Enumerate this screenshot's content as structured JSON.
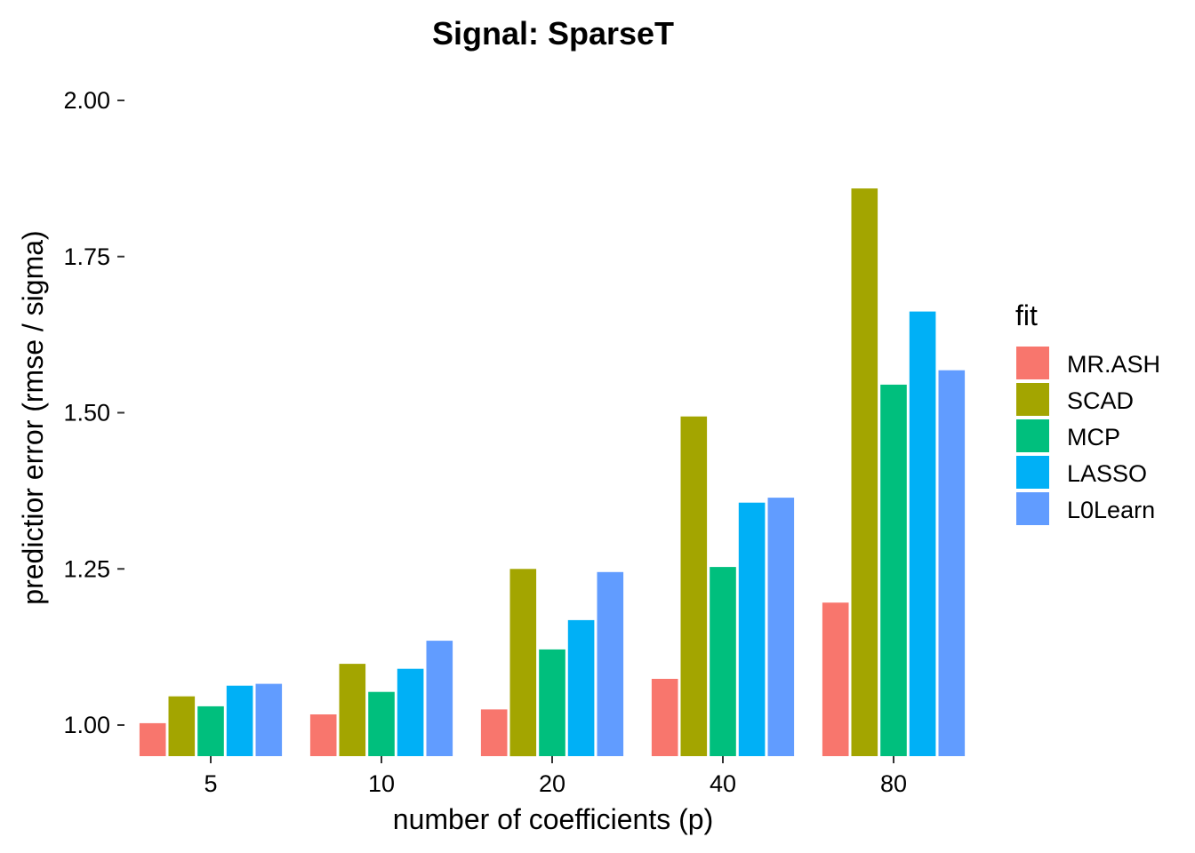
{
  "chart_data": {
    "type": "bar",
    "title": "Signal: SparseT",
    "xlabel": "number of coefficients (p)",
    "ylabel": "predictior error (rmse / sigma)",
    "categories": [
      "5",
      "10",
      "20",
      "40",
      "80"
    ],
    "ylim": [
      0.95,
      2.0
    ],
    "yticks": [
      "1.00",
      "1.25",
      "1.50",
      "1.75",
      "2.00"
    ],
    "grid": false,
    "legend": {
      "title": "fit",
      "position": "right"
    },
    "series": [
      {
        "name": "MR.ASH",
        "color": "#F8766D",
        "values": [
          1.003,
          1.017,
          1.025,
          1.074,
          1.196
        ]
      },
      {
        "name": "SCAD",
        "color": "#A3A500",
        "values": [
          1.046,
          1.098,
          1.25,
          1.494,
          1.859
        ]
      },
      {
        "name": "MCP",
        "color": "#00BF7D",
        "values": [
          1.03,
          1.053,
          1.121,
          1.253,
          1.545
        ]
      },
      {
        "name": "LASSO",
        "color": "#00B0F6",
        "values": [
          1.063,
          1.09,
          1.168,
          1.356,
          1.662
        ]
      },
      {
        "name": "L0Learn",
        "color": "#619CFF",
        "values": [
          1.066,
          1.135,
          1.245,
          1.364,
          1.568
        ]
      }
    ]
  }
}
